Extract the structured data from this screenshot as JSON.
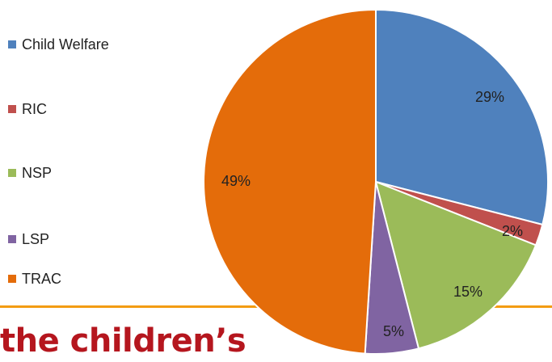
{
  "chart_data": {
    "type": "pie",
    "title": "",
    "slices": [
      {
        "label": "Child Welfare",
        "value": 29,
        "data_label": "29%",
        "color": "#4F81BD"
      },
      {
        "label": "RIC",
        "value": 2,
        "data_label": "2%",
        "color": "#C0504D"
      },
      {
        "label": "NSP",
        "value": 15,
        "data_label": "15%",
        "color": "#9BBB59"
      },
      {
        "label": "LSP",
        "value": 5,
        "data_label": "5%",
        "color": "#8064A2"
      },
      {
        "label": "TRAC",
        "value": 49,
        "data_label": "49%",
        "color": "#E46C0A"
      }
    ],
    "legend_position": "left"
  },
  "footer": {
    "brand_text": "the children’s",
    "brand_color": "#B5161E",
    "band_color": "#F39C12"
  }
}
